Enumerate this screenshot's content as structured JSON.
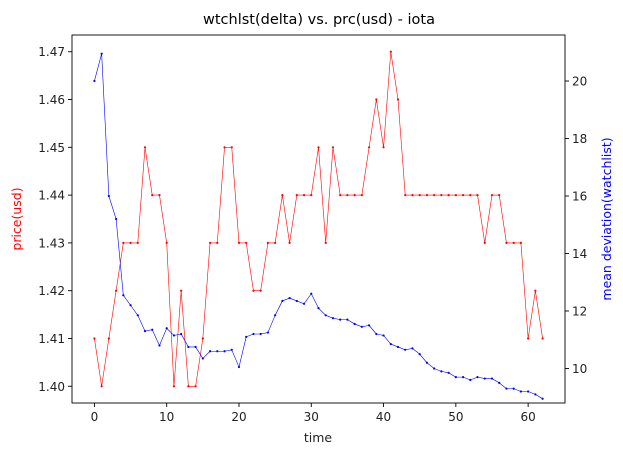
{
  "chart_data": {
    "type": "line",
    "title": "wtchlst(delta) vs. prc(usd) - iota",
    "xlabel": "time",
    "ylabel_left": "price(usd)",
    "ylabel_right": "mean deviation(watchlist)",
    "xlim": [
      -3.1,
      65.1
    ],
    "ylim_left": [
      1.3965,
      1.4735
    ],
    "ylim_right": [
      8.8,
      21.6
    ],
    "xticks": [
      0,
      10,
      20,
      30,
      40,
      50,
      60
    ],
    "yticks_left": [
      1.4,
      1.41,
      1.42,
      1.43,
      1.44,
      1.45,
      1.46,
      1.47
    ],
    "yticks_left_labels": [
      "1.40",
      "1.41",
      "1.42",
      "1.43",
      "1.44",
      "1.45",
      "1.46",
      "1.47"
    ],
    "yticks_right": [
      10,
      12,
      14,
      16,
      18,
      20
    ],
    "grid": false,
    "colors": {
      "left_axis": "#ff0000",
      "right_axis": "#0000ff"
    },
    "series": [
      {
        "axis": "left",
        "color": "#ff0000",
        "x": [
          0,
          1,
          2,
          3,
          4,
          5,
          6,
          7,
          8,
          9,
          10,
          11,
          12,
          13,
          14,
          15,
          16,
          17,
          18,
          19,
          20,
          21,
          22,
          23,
          24,
          25,
          26,
          27,
          28,
          29,
          30,
          31,
          32,
          33,
          34,
          35,
          36,
          37,
          38,
          39,
          40,
          41,
          42,
          43,
          44,
          45,
          46,
          47,
          48,
          49,
          50,
          51,
          52,
          53,
          54,
          55,
          56,
          57,
          58,
          59,
          60,
          61,
          62
        ],
        "values": [
          1.41,
          1.4,
          1.41,
          1.42,
          1.43,
          1.43,
          1.43,
          1.45,
          1.44,
          1.44,
          1.43,
          1.4,
          1.42,
          1.4,
          1.4,
          1.41,
          1.43,
          1.43,
          1.45,
          1.45,
          1.43,
          1.43,
          1.42,
          1.42,
          1.43,
          1.43,
          1.44,
          1.43,
          1.44,
          1.44,
          1.44,
          1.45,
          1.43,
          1.45,
          1.44,
          1.44,
          1.44,
          1.44,
          1.45,
          1.46,
          1.45,
          1.47,
          1.46,
          1.44,
          1.44,
          1.44,
          1.44,
          1.44,
          1.44,
          1.44,
          1.44,
          1.44,
          1.44,
          1.44,
          1.43,
          1.44,
          1.44,
          1.43,
          1.43,
          1.43,
          1.41,
          1.42,
          1.41
        ]
      },
      {
        "axis": "right",
        "color": "#0000ff",
        "x": [
          0,
          1,
          2,
          3,
          4,
          5,
          6,
          7,
          8,
          9,
          10,
          11,
          12,
          13,
          14,
          15,
          16,
          17,
          18,
          19,
          20,
          21,
          22,
          23,
          24,
          25,
          26,
          27,
          28,
          29,
          30,
          31,
          32,
          33,
          34,
          35,
          36,
          37,
          38,
          39,
          40,
          41,
          42,
          43,
          44,
          45,
          46,
          47,
          48,
          49,
          50,
          51,
          52,
          53,
          54,
          55,
          56,
          57,
          58,
          59,
          60,
          61,
          62
        ],
        "values": [
          20.0,
          20.95,
          16.0,
          15.2,
          12.55,
          12.2,
          11.85,
          11.3,
          11.35,
          10.8,
          11.4,
          11.15,
          11.2,
          10.75,
          10.75,
          10.35,
          10.6,
          10.6,
          10.6,
          10.65,
          10.05,
          11.1,
          11.2,
          11.2,
          11.25,
          11.85,
          12.35,
          12.45,
          12.35,
          12.25,
          12.6,
          12.1,
          11.85,
          11.75,
          11.7,
          11.7,
          11.55,
          11.45,
          11.5,
          11.2,
          11.15,
          10.85,
          10.75,
          10.65,
          10.7,
          10.5,
          10.2,
          10.0,
          9.9,
          9.85,
          9.7,
          9.7,
          9.6,
          9.7,
          9.65,
          9.65,
          9.5,
          9.3,
          9.3,
          9.2,
          9.2,
          9.1,
          8.95
        ]
      }
    ]
  }
}
